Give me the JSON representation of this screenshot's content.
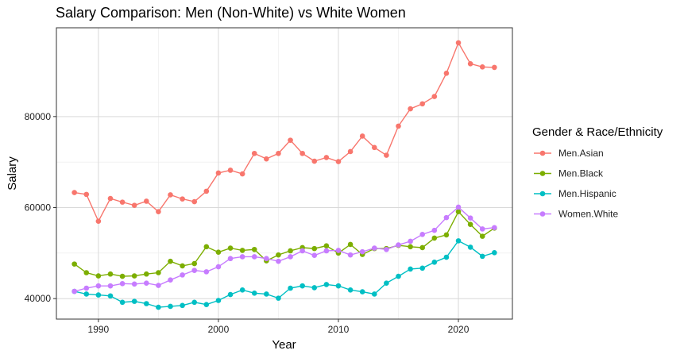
{
  "chart_data": {
    "type": "line",
    "title": "Salary Comparison: Men (Non-White) vs White Women",
    "xlabel": "Year",
    "ylabel": "Salary",
    "xlim": [
      1986.5,
      2024.5
    ],
    "ylim": [
      35500,
      99500
    ],
    "x_ticks": [
      1990,
      2000,
      2010,
      2020
    ],
    "y_ticks": [
      40000,
      60000,
      80000
    ],
    "x_tick_labels": [
      "1990",
      "2000",
      "2010",
      "2020"
    ],
    "y_tick_labels": [
      "40000",
      "60000",
      "80000"
    ],
    "grid": true,
    "legend": {
      "title": "Gender & Race/Ethnicity",
      "position": "right"
    },
    "x": [
      1988,
      1989,
      1990,
      1991,
      1992,
      1993,
      1994,
      1995,
      1996,
      1997,
      1998,
      1999,
      2000,
      2001,
      2002,
      2003,
      2004,
      2005,
      2006,
      2007,
      2008,
      2009,
      2010,
      2011,
      2012,
      2013,
      2014,
      2015,
      2016,
      2017,
      2018,
      2019,
      2020,
      2021,
      2022,
      2023
    ],
    "series": [
      {
        "name": "Men.Asian",
        "color": "#F8766D",
        "values": [
          63300,
          62900,
          57000,
          62000,
          61200,
          60500,
          61400,
          59100,
          62800,
          61900,
          61300,
          63600,
          67600,
          68200,
          67400,
          71900,
          70700,
          71900,
          74800,
          71900,
          70200,
          71000,
          70100,
          72300,
          75700,
          73200,
          71500,
          77900,
          81700,
          82800,
          84400,
          89500,
          96200,
          91600,
          90900,
          90800
        ]
      },
      {
        "name": "Men.Black",
        "color": "#7CAE00",
        "values": [
          47600,
          45700,
          45000,
          45400,
          44900,
          45000,
          45400,
          45700,
          48200,
          47200,
          47700,
          51400,
          50200,
          51100,
          50600,
          50800,
          48300,
          49600,
          50500,
          51200,
          51000,
          51600,
          50000,
          51900,
          49700,
          51000,
          51000,
          51700,
          51400,
          51200,
          53300,
          54000,
          59100,
          56300,
          53700,
          55500
        ]
      },
      {
        "name": "Men.Hispanic",
        "color": "#00BFC4",
        "values": [
          41600,
          41000,
          40800,
          40600,
          39200,
          39400,
          38900,
          38100,
          38300,
          38500,
          39200,
          38700,
          39600,
          40900,
          41900,
          41200,
          41000,
          40100,
          42300,
          42800,
          42400,
          43100,
          42800,
          41900,
          41500,
          41000,
          43400,
          44900,
          46500,
          46700,
          48000,
          49100,
          52700,
          51300,
          49300,
          50100
        ]
      },
      {
        "name": "Women.White",
        "color": "#C77CFF",
        "values": [
          41600,
          42300,
          42800,
          42800,
          43300,
          43200,
          43400,
          42900,
          44100,
          45200,
          46200,
          45900,
          47000,
          48800,
          49200,
          49200,
          48800,
          48200,
          49200,
          50500,
          49500,
          50500,
          50600,
          49600,
          50300,
          51100,
          50800,
          51800,
          52600,
          54100,
          55000,
          57800,
          60100,
          57700,
          55300,
          55600
        ]
      }
    ]
  }
}
